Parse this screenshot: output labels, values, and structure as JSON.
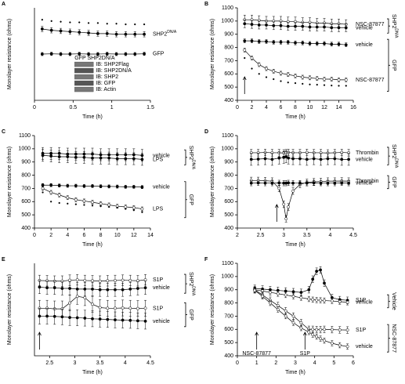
{
  "chart_data": [
    {
      "type": "line",
      "letter": "A",
      "color": "#000000",
      "xlabel": "Time (h)",
      "ylabel": "Monolayer resistance (ohms)",
      "xlim": [
        0,
        1.5
      ],
      "xticks": [
        0,
        0.5,
        1,
        1.5
      ],
      "ylim": [
        400,
        1100
      ],
      "x": [
        0.1,
        0.22,
        0.34,
        0.46,
        0.58,
        0.7,
        0.82,
        0.94,
        1.06,
        1.18,
        1.3,
        1.42
      ],
      "series": [
        {
          "style": "dot",
          "values": [
            1010,
            1000,
            995,
            990,
            990,
            985,
            985,
            980,
            980,
            975,
            975,
            975
          ]
        },
        {
          "name": "SHP2",
          "name_sup": "DN/A",
          "style": "filled",
          "error": 20,
          "values": [
            940,
            930,
            925,
            920,
            915,
            910,
            905,
            905,
            900,
            900,
            900,
            900
          ]
        },
        {
          "name": "GFP",
          "style": "filled",
          "error": 12,
          "values": [
            750,
            752,
            750,
            750,
            752,
            750,
            750,
            752,
            750,
            750,
            750,
            752
          ]
        }
      ],
      "inset": {
        "header": "GFP SHP2DN/A",
        "rows": [
          "IB: SHP2Flag",
          "IB: SHP2DN/A",
          "IB: SHP2",
          "IB: GFP",
          "IB: Actin"
        ]
      }
    },
    {
      "type": "line",
      "letter": "B",
      "color": "#000000",
      "xlabel": "Time (h)",
      "ylabel": "Monolayer resistance (ohms)",
      "xlim": [
        0,
        16
      ],
      "xticks": [
        0,
        2,
        4,
        6,
        8,
        10,
        12,
        14,
        16
      ],
      "ylim": [
        400,
        1100
      ],
      "yticks": [
        400,
        500,
        600,
        700,
        800,
        900,
        1000,
        1100
      ],
      "x": [
        1,
        2,
        3,
        4,
        5,
        6,
        7,
        8,
        9,
        10,
        11,
        12,
        13,
        14,
        15
      ],
      "arrows": [
        {
          "x": 1
        }
      ],
      "groups": [
        {
          "label": "SHP2",
          "sup": "DN/A",
          "series": [
            {
              "name": "NSC-87877",
              "style": "open",
              "error": 35,
              "values": [
                1010,
                1010,
                1005,
                1000,
                1000,
                1000,
                995,
                995,
                990,
                990,
                985,
                985,
                980,
                980,
                975
              ]
            },
            {
              "name": "vehicle",
              "style": "filled",
              "error": 30,
              "values": [
                980,
                975,
                970,
                970,
                965,
                965,
                960,
                960,
                960,
                955,
                955,
                955,
                950,
                950,
                950
              ]
            }
          ]
        },
        {
          "label": "GFP",
          "series": [
            {
              "name": "vehicle",
              "style": "filled",
              "error": 15,
              "values": [
                850,
                850,
                845,
                845,
                840,
                840,
                840,
                835,
                835,
                830,
                830,
                830,
                825,
                825,
                820
              ]
            },
            {
              "name": "NSC-87877",
              "style": "open",
              "error": 15,
              "values": [
                780,
                720,
                670,
                640,
                620,
                605,
                595,
                585,
                575,
                570,
                565,
                560,
                560,
                555,
                555
              ]
            },
            {
              "style": "dot",
              "values": [
                720,
                640,
                600,
                575,
                560,
                545,
                535,
                530,
                525,
                520,
                518,
                515,
                512,
                510,
                510
              ]
            }
          ]
        }
      ]
    },
    {
      "type": "line",
      "letter": "C",
      "color": "#000000",
      "xlabel": "Time (h)",
      "ylabel": "Monolayer resistance (ohms)",
      "xlim": [
        0,
        14
      ],
      "xticks": [
        0,
        2,
        4,
        6,
        8,
        10,
        12,
        14
      ],
      "ylim": [
        400,
        1100
      ],
      "yticks": [
        400,
        500,
        600,
        700,
        800,
        900,
        1000,
        1100
      ],
      "x": [
        1,
        2,
        3,
        4,
        5,
        6,
        7,
        8,
        9,
        10,
        11,
        12,
        13
      ],
      "groups": [
        {
          "label": "SHP2",
          "sup": "DN/A",
          "series": [
            {
              "name": "vehicle",
              "style": "filled",
              "error": 45,
              "values": [
                965,
                965,
                965,
                960,
                960,
                960,
                960,
                955,
                955,
                955,
                955,
                955,
                950
              ]
            },
            {
              "name": "LPS",
              "style": "filled",
              "error": 45,
              "values": [
                950,
                945,
                940,
                940,
                935,
                935,
                930,
                930,
                930,
                925,
                925,
                925,
                920
              ]
            }
          ]
        },
        {
          "label": "GFP",
          "series": [
            {
              "name": "vehicle",
              "style": "filled",
              "error": 12,
              "values": [
                725,
                725,
                722,
                720,
                720,
                718,
                718,
                716,
                715,
                714,
                712,
                712,
                710
              ]
            },
            {
              "name": "LPS",
              "style": "open",
              "error": 15,
              "values": [
                700,
                670,
                650,
                630,
                615,
                605,
                595,
                585,
                575,
                565,
                560,
                555,
                545
              ]
            },
            {
              "style": "dot",
              "values": [
                670,
                600,
                590,
                585,
                580,
                575,
                570,
                565,
                560,
                555,
                545,
                535,
                520
              ]
            }
          ]
        }
      ]
    },
    {
      "type": "line",
      "letter": "D",
      "color": "#000000",
      "xlabel": "Time (h)",
      "ylabel": "Monolayer resistance (ohms)",
      "xlim": [
        2,
        4.5
      ],
      "xticks": [
        2,
        2.5,
        3,
        3.5,
        4,
        4.5
      ],
      "ylim": [
        400,
        1100
      ],
      "yticks": [
        400,
        500,
        600,
        700,
        800,
        900,
        1000,
        1100
      ],
      "x": [
        2.3,
        2.45,
        2.6,
        2.75,
        2.9,
        3.0,
        3.05,
        3.1,
        3.2,
        3.35,
        3.5,
        3.65,
        3.8,
        3.95,
        4.1,
        4.25,
        4.4
      ],
      "arrows": [
        {
          "x": 2.85
        }
      ],
      "groups": [
        {
          "label": "SHP2",
          "sup": "DN/A",
          "series": [
            {
              "name": "Thrombin",
              "style": "open",
              "error": 25,
              "values": [
                970,
                970,
                972,
                970,
                970,
                968,
                970,
                972,
                970,
                970,
                972,
                970,
                970,
                968,
                970,
                972,
                970
              ]
            },
            {
              "name": "vehicle",
              "style": "filled",
              "error": 45,
              "values": [
                920,
                922,
                925,
                920,
                930,
                935,
                940,
                930,
                925,
                925,
                920,
                925,
                920,
                925,
                925,
                920,
                920
              ]
            }
          ]
        },
        {
          "label": "GFP",
          "series": [
            {
              "name": "Thrombin",
              "style": "open",
              "error": 25,
              "values": [
                760,
                760,
                758,
                755,
                700,
                580,
                470,
                560,
                680,
                730,
                745,
                750,
                752,
                755,
                755,
                756,
                755
              ]
            },
            {
              "name": "vehicle",
              "style": "filled",
              "error": 20,
              "values": [
                740,
                742,
                740,
                740,
                742,
                740,
                740,
                742,
                740,
                740,
                740,
                742,
                740,
                740,
                740,
                742,
                740
              ]
            }
          ]
        }
      ]
    },
    {
      "type": "line",
      "letter": "E",
      "color": "#000000",
      "xlabel": "Time (h)",
      "ylabel": "Monolayer resistance (ohms)",
      "xlim": [
        2.2,
        4.5
      ],
      "xticks": [
        2.5,
        3,
        3.5,
        4,
        4.5
      ],
      "ylim": [
        400,
        1100
      ],
      "x": [
        2.3,
        2.45,
        2.6,
        2.75,
        2.9,
        3.05,
        3.2,
        3.35,
        3.5,
        3.65,
        3.8,
        3.95,
        4.1,
        4.25,
        4.4
      ],
      "arrows": [
        {
          "x": 2.3
        }
      ],
      "groups": [
        {
          "label": "SHP2",
          "sup": "DN/A",
          "series": [
            {
              "name": "S1P",
              "style": "open",
              "error": 40,
              "values": [
                970,
                968,
                965,
                965,
                972,
                975,
                970,
                968,
                965,
                968,
                970,
                972,
                970,
                968,
                975
              ]
            },
            {
              "name": "vehicle",
              "style": "filled",
              "error": 50,
              "values": [
                920,
                915,
                915,
                910,
                910,
                905,
                905,
                905,
                900,
                900,
                900,
                900,
                905,
                910,
                915
              ]
            }
          ]
        },
        {
          "label": "GFP",
          "series": [
            {
              "name": "S1P",
              "style": "open",
              "error": 60,
              "values": [
                760,
                760,
                755,
                755,
                800,
                850,
                840,
                790,
                765,
                760,
                760,
                762,
                760,
                758,
                760
              ]
            },
            {
              "name": "vehicle",
              "style": "filled",
              "error": 60,
              "values": [
                700,
                700,
                698,
                695,
                690,
                688,
                685,
                680,
                678,
                675,
                672,
                670,
                668,
                665,
                662
              ]
            }
          ]
        }
      ]
    },
    {
      "type": "line",
      "letter": "F",
      "color": "#000000",
      "xlabel": "Time (h)",
      "ylabel": "Monolayer resistance (ohms)",
      "xlim": [
        0,
        6
      ],
      "xticks": [
        0,
        1,
        2,
        3,
        4,
        5,
        6
      ],
      "ylim": [
        400,
        1100
      ],
      "yticks": [
        400,
        500,
        600,
        700,
        800,
        900,
        1000,
        1100
      ],
      "x": [
        0.9,
        1.3,
        1.7,
        2.1,
        2.5,
        2.9,
        3.3,
        3.7,
        3.9,
        4.1,
        4.3,
        4.5,
        4.9,
        5.3,
        5.7
      ],
      "arrows": [
        {
          "x": 1,
          "label": "NSC-87877"
        },
        {
          "x": 3.5,
          "label": "S1P"
        }
      ],
      "groups": [
        {
          "label": "Vehicle",
          "series": [
            {
              "name": "S1P",
              "style": "filled",
              "error": 25,
              "values": [
                910,
                905,
                900,
                895,
                890,
                885,
                880,
                900,
                980,
                1040,
                1050,
                950,
                840,
                825,
                820
              ]
            },
            {
              "name": "vehicle",
              "style": "open",
              "error": 20,
              "values": [
                900,
                890,
                880,
                870,
                860,
                850,
                840,
                830,
                825,
                822,
                820,
                818,
                815,
                810,
                805
              ]
            }
          ]
        },
        {
          "label": "NSC-87877",
          "series": [
            {
              "name": "S1P",
              "style": "open",
              "error": 25,
              "values": [
                900,
                860,
                820,
                780,
                740,
                700,
                650,
                600,
                600,
                598,
                598,
                600,
                598,
                596,
                595
              ]
            },
            {
              "name": "vehicle",
              "style": "open",
              "error": 20,
              "values": [
                895,
                850,
                800,
                750,
                700,
                650,
                610,
                580,
                560,
                545,
                530,
                515,
                495,
                480,
                470
              ]
            }
          ]
        }
      ]
    }
  ]
}
